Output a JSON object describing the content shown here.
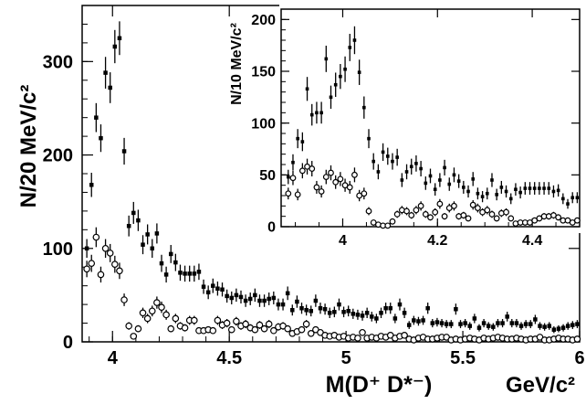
{
  "chart_data": [
    {
      "type": "scatter",
      "role": "main",
      "xlabel": "M(D⁺ D*⁻)",
      "xunit": "GeV/c²",
      "ylabel": "N/20 MeV/c²",
      "xlim": [
        3.87,
        6.0
      ],
      "ylim": [
        0,
        360
      ],
      "xticks": [
        4,
        4.5,
        5,
        5.5,
        6
      ],
      "xtick_labels": [
        "4",
        "4.5",
        "5",
        "5.5",
        "6"
      ],
      "yticks": [
        0,
        100,
        200,
        300
      ],
      "ytick_labels": [
        "0",
        "100",
        "200",
        "300"
      ],
      "series": [
        {
          "marker": "filled-square",
          "x": [
            3.89,
            3.91,
            3.93,
            3.95,
            3.97,
            3.99,
            4.01,
            4.03,
            4.05,
            4.07,
            4.09,
            4.11,
            4.13,
            4.15,
            4.17,
            4.19,
            4.21,
            4.23,
            4.25,
            4.27,
            4.29,
            4.31,
            4.33,
            4.35,
            4.37,
            4.39,
            4.41,
            4.43,
            4.45,
            4.47,
            4.49,
            4.51,
            4.53,
            4.55,
            4.57,
            4.59,
            4.61,
            4.63,
            4.65,
            4.67,
            4.69,
            4.71,
            4.73,
            4.75,
            4.77,
            4.79,
            4.81,
            4.83,
            4.85,
            4.87,
            4.89,
            4.91,
            4.93,
            4.95,
            4.97,
            4.99,
            5.01,
            5.03,
            5.05,
            5.07,
            5.09,
            5.11,
            5.13,
            5.15,
            5.17,
            5.19,
            5.21,
            5.23,
            5.25,
            5.27,
            5.29,
            5.31,
            5.33,
            5.35,
            5.37,
            5.39,
            5.41,
            5.43,
            5.45,
            5.47,
            5.49,
            5.51,
            5.53,
            5.55,
            5.57,
            5.59,
            5.61,
            5.63,
            5.65,
            5.67,
            5.69,
            5.71,
            5.73,
            5.75,
            5.77,
            5.79,
            5.81,
            5.83,
            5.85,
            5.87,
            5.89,
            5.91,
            5.93,
            5.95,
            5.97,
            5.99
          ],
          "y": [
            100,
            168,
            240,
            218,
            288,
            272,
            316,
            325,
            204,
            124,
            138,
            130,
            104,
            115,
            100,
            116,
            84,
            72,
            94,
            85,
            74,
            73,
            73,
            73,
            75,
            59,
            53,
            60,
            57,
            56,
            49,
            47,
            50,
            48,
            44,
            46,
            50,
            44,
            44,
            46,
            47,
            40,
            40,
            52,
            34,
            43,
            36,
            34,
            33,
            44,
            36,
            35,
            31,
            32,
            40,
            32,
            33,
            30,
            29,
            28,
            31,
            27,
            25,
            31,
            36,
            36,
            25,
            40,
            31,
            18,
            23,
            22,
            23,
            36,
            20,
            21,
            20,
            19,
            19,
            35,
            19,
            20,
            17,
            25,
            15,
            20,
            17,
            16,
            20,
            20,
            27,
            20,
            20,
            17,
            19,
            19,
            24,
            17,
            16,
            17,
            13,
            14,
            15,
            17,
            18,
            19
          ]
        },
        {
          "marker": "open-circle",
          "x": [
            3.89,
            3.91,
            3.93,
            3.95,
            3.97,
            3.99,
            4.01,
            4.03,
            4.05,
            4.07,
            4.09,
            4.11,
            4.13,
            4.15,
            4.17,
            4.19,
            4.21,
            4.23,
            4.25,
            4.27,
            4.29,
            4.31,
            4.33,
            4.35,
            4.37,
            4.39,
            4.41,
            4.43,
            4.45,
            4.47,
            4.49,
            4.51,
            4.53,
            4.55,
            4.57,
            4.59,
            4.61,
            4.63,
            4.65,
            4.67,
            4.69,
            4.71,
            4.73,
            4.75,
            4.77,
            4.79,
            4.81,
            4.83,
            4.85,
            4.87,
            4.89,
            4.91,
            4.93,
            4.95,
            4.97,
            4.99,
            5.01,
            5.03,
            5.05,
            5.07,
            5.09,
            5.11,
            5.13,
            5.15,
            5.17,
            5.19,
            5.21,
            5.23,
            5.25,
            5.27,
            5.29,
            5.31,
            5.33,
            5.35,
            5.37,
            5.39,
            5.41,
            5.43,
            5.45,
            5.47,
            5.49,
            5.51,
            5.53,
            5.55,
            5.57,
            5.59,
            5.61,
            5.63,
            5.65,
            5.67,
            5.69,
            5.71,
            5.73,
            5.75,
            5.77,
            5.79,
            5.81,
            5.83,
            5.85,
            5.87,
            5.89,
            5.91,
            5.93,
            5.95,
            5.97,
            5.99
          ],
          "y": [
            78,
            84,
            112,
            72,
            100,
            95,
            83,
            76,
            45,
            17,
            6,
            14,
            31,
            25,
            33,
            42,
            37,
            29,
            14,
            25,
            17,
            15,
            23,
            23,
            12,
            12,
            13,
            12,
            23,
            18,
            20,
            13,
            22,
            17,
            19,
            15,
            13,
            18,
            14,
            19,
            12,
            16,
            17,
            14,
            9,
            11,
            13,
            19,
            9,
            13,
            10,
            7,
            6,
            7,
            5,
            6,
            4,
            5,
            4,
            10,
            4,
            5,
            4,
            6,
            5,
            7,
            4,
            6,
            7,
            3,
            2,
            4,
            5,
            3,
            3,
            4,
            5,
            5,
            2,
            3,
            2,
            3,
            4,
            3,
            2,
            4,
            3,
            4,
            5,
            4,
            3,
            3,
            4,
            3,
            2,
            3,
            3,
            5,
            2,
            2,
            3,
            4,
            3,
            3,
            2,
            3
          ]
        }
      ]
    },
    {
      "type": "scatter",
      "role": "inset",
      "ylabel": "N/10 MeV/c²",
      "xlim": [
        3.87,
        4.5
      ],
      "ylim": [
        0,
        210
      ],
      "xticks": [
        4,
        4.2,
        4.4
      ],
      "xtick_labels": [
        "4",
        "4.2",
        "4.4"
      ],
      "yticks": [
        0,
        50,
        100,
        150,
        200
      ],
      "ytick_labels": [
        "0",
        "50",
        "100",
        "150",
        "200"
      ],
      "series": [
        {
          "marker": "filled-square",
          "x": [
            3.885,
            3.895,
            3.905,
            3.915,
            3.925,
            3.935,
            3.945,
            3.955,
            3.965,
            3.975,
            3.985,
            3.995,
            4.005,
            4.015,
            4.025,
            4.035,
            4.045,
            4.055,
            4.065,
            4.075,
            4.085,
            4.095,
            4.105,
            4.115,
            4.125,
            4.135,
            4.145,
            4.155,
            4.165,
            4.175,
            4.185,
            4.195,
            4.205,
            4.215,
            4.225,
            4.235,
            4.245,
            4.255,
            4.265,
            4.275,
            4.285,
            4.295,
            4.305,
            4.315,
            4.325,
            4.335,
            4.345,
            4.355,
            4.365,
            4.375,
            4.385,
            4.395,
            4.405,
            4.415,
            4.425,
            4.435,
            4.445,
            4.455,
            4.465,
            4.475,
            4.485,
            4.495
          ],
          "y": [
            48,
            62,
            85,
            82,
            133,
            108,
            110,
            110,
            162,
            125,
            137,
            145,
            152,
            173,
            180,
            149,
            115,
            85,
            63,
            53,
            72,
            68,
            63,
            67,
            45,
            53,
            58,
            61,
            56,
            42,
            49,
            36,
            45,
            57,
            41,
            50,
            44,
            38,
            34,
            46,
            32,
            29,
            32,
            45,
            31,
            38,
            34,
            27,
            36,
            33,
            37,
            37,
            37,
            37,
            37,
            37,
            34,
            35,
            27,
            22,
            28,
            28
          ]
        },
        {
          "marker": "open-circle",
          "x": [
            3.885,
            3.895,
            3.905,
            3.915,
            3.925,
            3.935,
            3.945,
            3.955,
            3.965,
            3.975,
            3.985,
            3.995,
            4.005,
            4.015,
            4.025,
            4.035,
            4.045,
            4.055,
            4.065,
            4.075,
            4.085,
            4.095,
            4.105,
            4.115,
            4.125,
            4.135,
            4.145,
            4.155,
            4.165,
            4.175,
            4.185,
            4.195,
            4.205,
            4.215,
            4.225,
            4.235,
            4.245,
            4.255,
            4.265,
            4.275,
            4.285,
            4.295,
            4.305,
            4.315,
            4.325,
            4.335,
            4.345,
            4.355,
            4.365,
            4.375,
            4.385,
            4.395,
            4.405,
            4.415,
            4.425,
            4.435,
            4.445,
            4.455,
            4.465,
            4.475,
            4.485,
            4.495
          ],
          "y": [
            32,
            47,
            31,
            54,
            58,
            56,
            38,
            34,
            48,
            52,
            43,
            46,
            40,
            38,
            50,
            30,
            32,
            15,
            4,
            2,
            1,
            1,
            5,
            12,
            16,
            15,
            11,
            16,
            20,
            12,
            9,
            14,
            22,
            10,
            18,
            20,
            10,
            11,
            8,
            21,
            18,
            14,
            16,
            12,
            8,
            13,
            14,
            8,
            3,
            4,
            4,
            4,
            6,
            8,
            10,
            10,
            11,
            9,
            6,
            6,
            4,
            6
          ]
        }
      ]
    }
  ]
}
